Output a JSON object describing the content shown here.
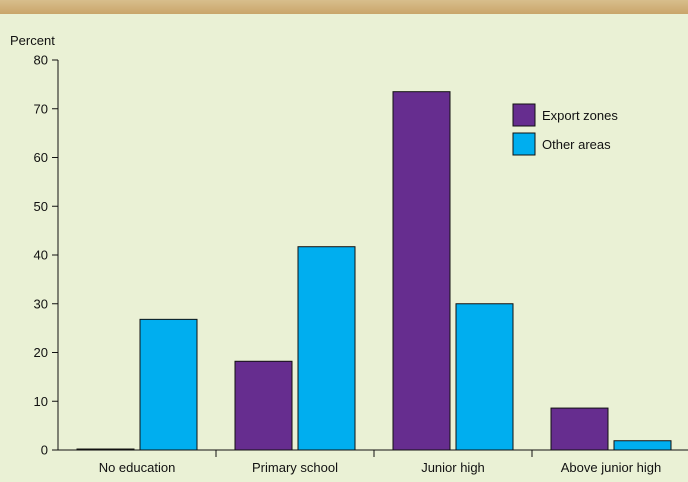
{
  "chart_data": {
    "type": "bar",
    "ylabel": "Percent",
    "xlabel": "",
    "ylim": [
      0,
      80
    ],
    "yticks": [
      0,
      10,
      20,
      30,
      40,
      50,
      60,
      70,
      80
    ],
    "categories": [
      "No education",
      "Primary school",
      "Junior high",
      "Above junior high"
    ],
    "series": [
      {
        "name": "Export zones",
        "values": [
          0.2,
          18.2,
          73.5,
          8.6
        ],
        "color": "#662d8f"
      },
      {
        "name": "Other areas",
        "values": [
          26.8,
          41.7,
          30.0,
          1.9
        ],
        "color": "#00aeef"
      }
    ],
    "legend_position": "top-right",
    "grid": false
  },
  "colors": {
    "background": "#eaf1d5",
    "top_band": "#c9a56a",
    "axis": "#111111"
  }
}
